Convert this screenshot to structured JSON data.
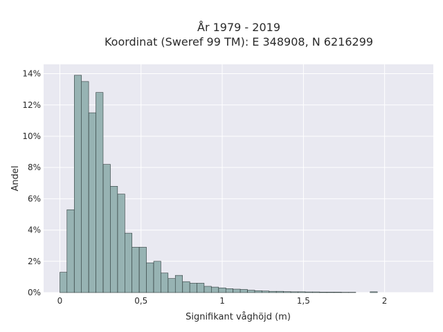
{
  "chart_data": {
    "type": "bar",
    "title_line1": "År 1979 - 2019",
    "title_line2": "Koordinat (Sweref 99 TM): E 348908, N 6216299",
    "xlabel": "Signifikant våghöjd (m)",
    "ylabel": "Andel",
    "xlim": [
      -0.1,
      2.3
    ],
    "ylim": [
      0,
      14.6
    ],
    "x_ticks": [
      0,
      0.5,
      1,
      1.5,
      2
    ],
    "x_tick_labels": [
      "0",
      "0,5",
      "1",
      "1,5",
      "2"
    ],
    "y_ticks": [
      0,
      2,
      4,
      6,
      8,
      10,
      12,
      14
    ],
    "y_tick_labels": [
      "0%",
      "2%",
      "4%",
      "6%",
      "8%",
      "10%",
      "12%",
      "14%"
    ],
    "grid": true,
    "bin_width": 0.0444,
    "bins_start": [
      0.0,
      0.044,
      0.089,
      0.133,
      0.178,
      0.222,
      0.267,
      0.311,
      0.356,
      0.4,
      0.444,
      0.489,
      0.533,
      0.578,
      0.622,
      0.667,
      0.711,
      0.756,
      0.8,
      0.844,
      0.889,
      0.933,
      0.978,
      1.022,
      1.067,
      1.111,
      1.156,
      1.2,
      1.244,
      1.289,
      1.333,
      1.378,
      1.422,
      1.467,
      1.511,
      1.556,
      1.6,
      1.644,
      1.689,
      1.733,
      1.778,
      1.822,
      1.867,
      1.911
    ],
    "values": [
      1.3,
      5.3,
      13.9,
      13.5,
      11.5,
      12.8,
      8.2,
      6.8,
      6.3,
      3.8,
      2.9,
      2.9,
      1.9,
      2.0,
      1.25,
      0.9,
      1.1,
      0.7,
      0.6,
      0.6,
      0.4,
      0.35,
      0.3,
      0.25,
      0.22,
      0.2,
      0.15,
      0.12,
      0.1,
      0.08,
      0.08,
      0.06,
      0.05,
      0.05,
      0.04,
      0.04,
      0.03,
      0.03,
      0.03,
      0.02,
      0.02,
      0.0,
      0.0,
      0.05
    ],
    "colors": {
      "bar_fill": "#97b3b3",
      "bar_stroke": "#2e3a3a",
      "plot_bg": "#e9e9f1",
      "grid": "#ffffff"
    }
  }
}
